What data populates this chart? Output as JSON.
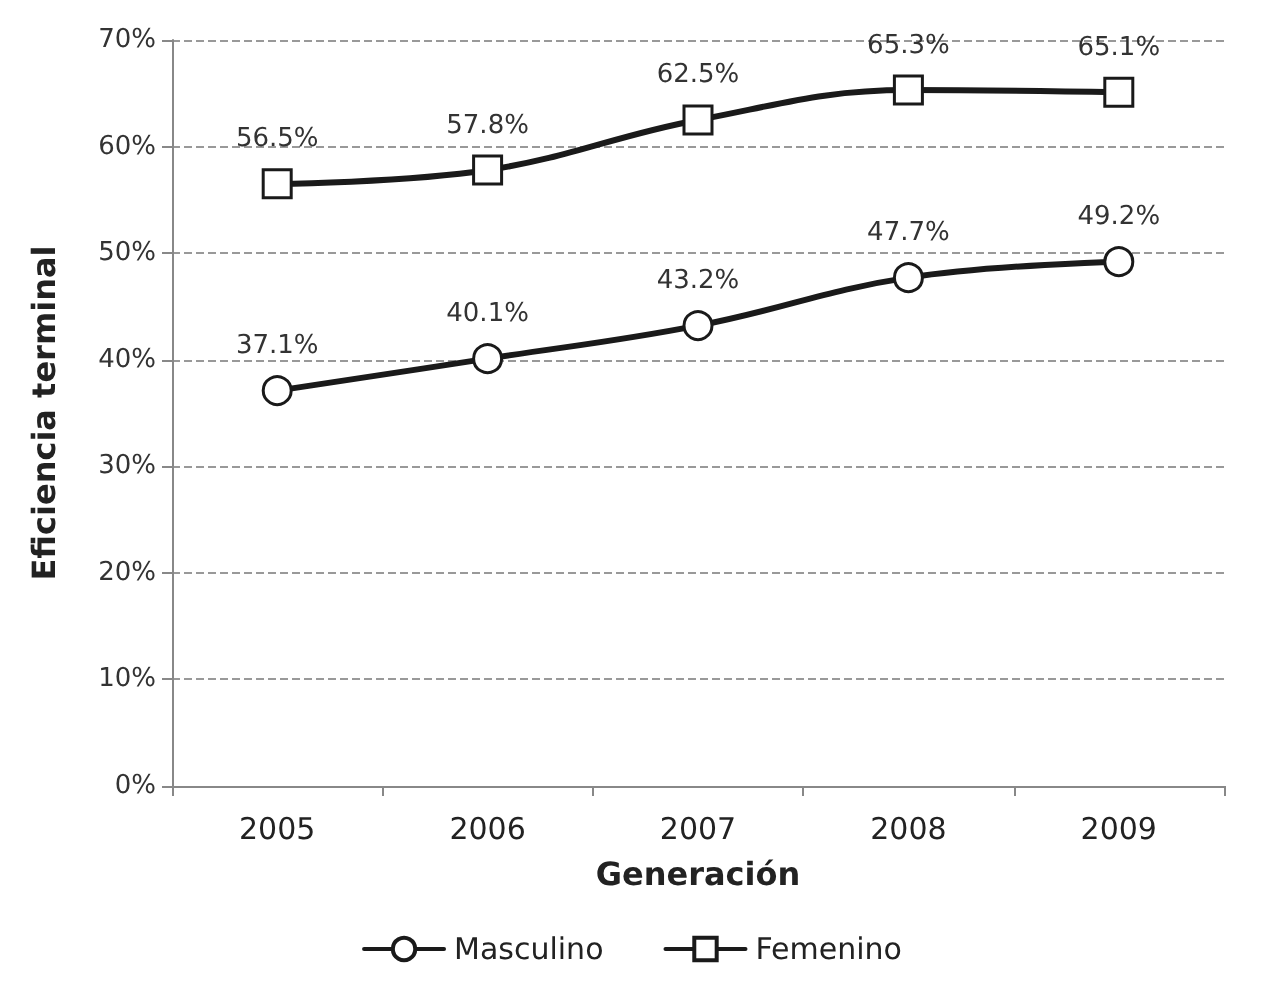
{
  "chart_data": {
    "type": "line",
    "xlabel": "Generación",
    "ylabel": "Eficiencia terminal",
    "categories": [
      "2005",
      "2006",
      "2007",
      "2008",
      "2009"
    ],
    "series": [
      {
        "name": "Masculino",
        "color": "#1a1a1a",
        "marker": "circle",
        "values": [
          37.1,
          40.1,
          43.2,
          47.7,
          49.2
        ],
        "value_labels": [
          "37.1%",
          "40.1%",
          "43.2%",
          "47.7%",
          "49.2%"
        ]
      },
      {
        "name": "Femenino",
        "color": "#1a1a1a",
        "marker": "square",
        "values": [
          56.5,
          57.8,
          62.5,
          65.3,
          65.1
        ],
        "value_labels": [
          "56.5%",
          "57.8%",
          "62.5%",
          "65.3%",
          "65.1%"
        ]
      }
    ],
    "ylim": [
      0,
      70
    ],
    "yticks": [
      {
        "value": 0,
        "label": "0%"
      },
      {
        "value": 10,
        "label": "10%"
      },
      {
        "value": 20,
        "label": "20%"
      },
      {
        "value": 30,
        "label": "30%"
      },
      {
        "value": 40,
        "label": "40%"
      },
      {
        "value": 50,
        "label": "50%"
      },
      {
        "value": 60,
        "label": "60%"
      },
      {
        "value": 70,
        "label": "70%"
      }
    ],
    "grid": "y",
    "legend": "bottom",
    "line_style": "solid"
  }
}
